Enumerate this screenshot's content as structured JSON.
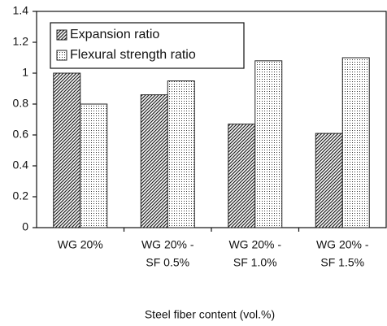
{
  "chart_data": {
    "type": "bar",
    "x_label": "Steel fiber content (vol.%)",
    "categories": [
      [
        "WG 20%"
      ],
      [
        "WG 20% -",
        "SF 0.5%"
      ],
      [
        "WG 20% -",
        "SF 1.0%"
      ],
      [
        "WG 20% -",
        "SF 1.5%"
      ]
    ],
    "series": [
      {
        "name": "Expansion ratio",
        "color": "#222222",
        "pattern": "hatch",
        "values": [
          1.0,
          0.86,
          0.67,
          0.61
        ]
      },
      {
        "name": "Flexural strength ratio",
        "color": "#222222",
        "pattern": "dots",
        "values": [
          0.8,
          0.95,
          1.08,
          1.1
        ]
      }
    ],
    "ylim": [
      0,
      1.4
    ],
    "yticks": [
      0,
      0.2,
      0.4,
      0.6,
      0.8,
      1,
      1.2,
      1.4
    ],
    "legend": "top-left"
  }
}
